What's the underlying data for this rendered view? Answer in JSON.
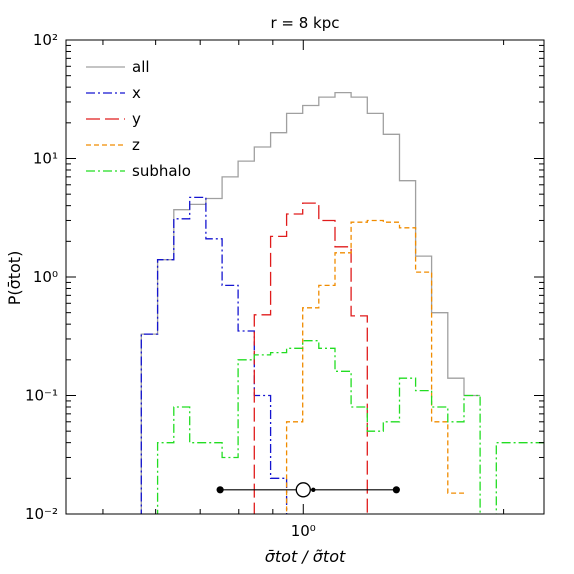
{
  "chart_data": {
    "type": "step-histogram",
    "title": "r = 8 kpc",
    "xlabel": "σ̄tot / σ̃tot",
    "ylabel": "P(σ̄tot)",
    "xscale": "log",
    "yscale": "log",
    "xlim": [
      0.44,
      2.3
    ],
    "ylim": [
      0.01,
      100
    ],
    "x_ticks": [
      {
        "value": 1,
        "label": "10⁰"
      }
    ],
    "y_ticks": [
      {
        "value": 0.01,
        "label": "10⁻²"
      },
      {
        "value": 0.1,
        "label": "10⁻¹"
      },
      {
        "value": 1,
        "label": "10⁰"
      },
      {
        "value": 10,
        "label": "10¹"
      },
      {
        "value": 100,
        "label": "10²"
      }
    ],
    "legend_position": "top-left",
    "series": [
      {
        "name": "all",
        "color": "#a0a0a0",
        "dash": "solid",
        "edges": [
          0.54,
          0.571,
          0.604,
          0.639,
          0.675,
          0.714,
          0.755,
          0.798,
          0.844,
          0.893,
          0.944,
          0.998,
          1.055,
          1.116,
          1.18,
          1.248,
          1.319,
          1.395,
          1.475,
          1.559,
          1.649,
          1.744,
          1.844
        ],
        "values": [
          0.009,
          0.33,
          1.4,
          3.7,
          4.1,
          4.6,
          7.0,
          9.5,
          12.5,
          16.5,
          24.0,
          28.0,
          33.0,
          36.0,
          33.0,
          24.0,
          16.0,
          6.5,
          1.5,
          0.5,
          0.14,
          0.1
        ]
      },
      {
        "name": "x",
        "color": "#1515d0",
        "dash": "dashdot",
        "edges": [
          0.54,
          0.571,
          0.604,
          0.639,
          0.675,
          0.714,
          0.755,
          0.798,
          0.844,
          0.893,
          0.944,
          0.998
        ],
        "values": [
          0.009,
          0.33,
          1.4,
          3.1,
          4.7,
          2.1,
          0.85,
          0.35,
          0.1,
          0.02,
          0.009
        ]
      },
      {
        "name": "y",
        "color": "#e01c1c",
        "dash": "longdash",
        "edges": [
          0.798,
          0.844,
          0.893,
          0.944,
          0.998,
          1.055,
          1.116,
          1.18,
          1.248,
          1.319
        ],
        "values": [
          0.009,
          0.48,
          2.2,
          3.4,
          4.2,
          3.0,
          1.8,
          0.47,
          0.009
        ]
      },
      {
        "name": "z",
        "color": "#f08c00",
        "dash": "shortdash",
        "edges": [
          0.893,
          0.944,
          0.998,
          1.055,
          1.116,
          1.18,
          1.248,
          1.319,
          1.395,
          1.475,
          1.559,
          1.649,
          1.744
        ],
        "values": [
          0.009,
          0.06,
          0.55,
          0.85,
          1.6,
          2.9,
          3.0,
          2.9,
          2.6,
          1.1,
          0.06,
          0.015
        ]
      },
      {
        "name": "subhalo",
        "color": "#22dd22",
        "dash": "dashdot",
        "edges": [
          0.571,
          0.604,
          0.639,
          0.675,
          0.714,
          0.755,
          0.798,
          0.844,
          0.893,
          0.944,
          0.998,
          1.055,
          1.116,
          1.18,
          1.248,
          1.319,
          1.395,
          1.475,
          1.559,
          1.649,
          1.744,
          1.844,
          1.95,
          2.06,
          2.18,
          2.3
        ],
        "values": [
          0.009,
          0.04,
          0.08,
          0.04,
          0.04,
          0.03,
          0.2,
          0.22,
          0.23,
          0.25,
          0.29,
          0.25,
          0.16,
          0.08,
          0.05,
          0.06,
          0.14,
          0.11,
          0.08,
          0.06,
          0.1,
          0.009,
          0.04,
          0.04,
          0.04
        ]
      }
    ],
    "marker": {
      "center": 1.0,
      "low": 0.75,
      "high": 1.38,
      "y": 0.016
    }
  }
}
